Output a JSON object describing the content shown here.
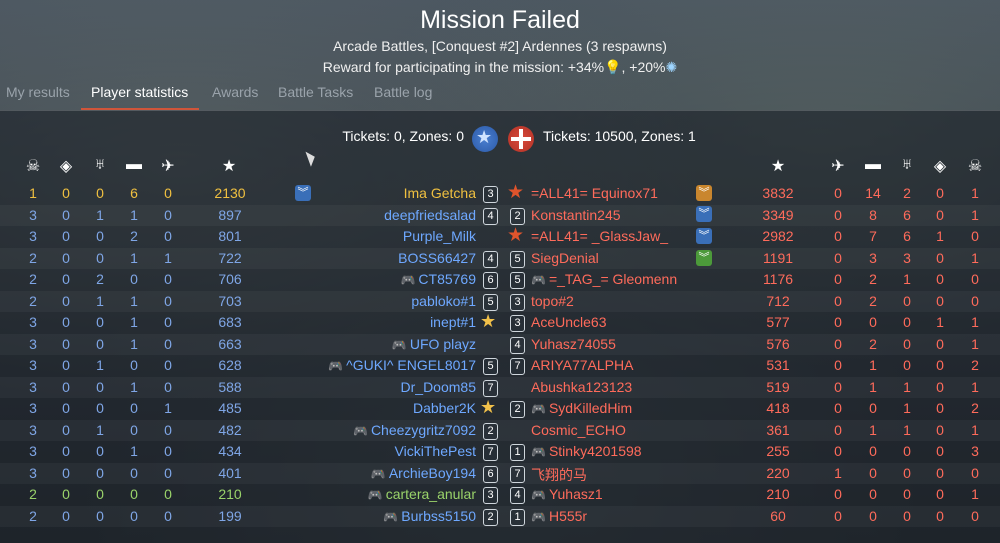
{
  "header": {
    "title": "Mission Failed",
    "subtitle": "Arcade Battles, [Conquest #2] Ardennes (3 respawns)",
    "reward_prefix": "Reward for participating in the mission:",
    "reward_rp": "+34%",
    "reward_sl": "+20%"
  },
  "tabs": [
    {
      "label": "My results"
    },
    {
      "label": "Player statistics"
    },
    {
      "label": "Awards"
    },
    {
      "label": "Battle Tasks"
    },
    {
      "label": "Battle log"
    }
  ],
  "tickets": {
    "left": "Tickets: 0, Zones: 0",
    "right": "Tickets: 10500, Zones: 1"
  },
  "colors": {
    "ally": "#6ea8ff",
    "enemy": "#ff6b5b",
    "self": "#f0c040",
    "squad": "#9ad36a"
  },
  "column_icons": [
    "skull-icon",
    "capture-icon",
    "assist-icon",
    "tank-icon",
    "plane-icon",
    "score-icon"
  ],
  "left_team": [
    {
      "deaths": "1",
      "caps": "0",
      "assists": "0",
      "ground": "6",
      "air": "0",
      "score": "2130",
      "name": "Ima Getcha",
      "rank": "3",
      "color": "self",
      "gp": false
    },
    {
      "deaths": "3",
      "caps": "0",
      "assists": "1",
      "ground": "1",
      "air": "0",
      "score": "897",
      "name": "deepfriedsalad",
      "rank": "4",
      "color": "ally",
      "gp": false
    },
    {
      "deaths": "3",
      "caps": "0",
      "assists": "0",
      "ground": "2",
      "air": "0",
      "score": "801",
      "name": "Purple_Milk",
      "rank": "",
      "color": "ally",
      "gp": false
    },
    {
      "deaths": "2",
      "caps": "0",
      "assists": "0",
      "ground": "1",
      "air": "1",
      "score": "722",
      "name": "BOSS66427",
      "rank": "4",
      "color": "ally",
      "gp": false
    },
    {
      "deaths": "2",
      "caps": "0",
      "assists": "2",
      "ground": "0",
      "air": "0",
      "score": "706",
      "name": "CT85769",
      "rank": "6",
      "color": "ally",
      "gp": true
    },
    {
      "deaths": "2",
      "caps": "0",
      "assists": "1",
      "ground": "1",
      "air": "0",
      "score": "703",
      "name": "pabloko#1",
      "rank": "5",
      "color": "ally",
      "gp": false
    },
    {
      "deaths": "3",
      "caps": "0",
      "assists": "0",
      "ground": "1",
      "air": "0",
      "score": "683",
      "name": "inept#1",
      "rank": "",
      "color": "ally",
      "gp": false
    },
    {
      "deaths": "3",
      "caps": "0",
      "assists": "0",
      "ground": "1",
      "air": "0",
      "score": "663",
      "name": "UFO playz",
      "rank": "",
      "color": "ally",
      "gp": true
    },
    {
      "deaths": "3",
      "caps": "0",
      "assists": "1",
      "ground": "0",
      "air": "0",
      "score": "628",
      "name": "^GUKI^ ENGEL8017",
      "rank": "5",
      "color": "ally",
      "gp": true
    },
    {
      "deaths": "3",
      "caps": "0",
      "assists": "0",
      "ground": "1",
      "air": "0",
      "score": "588",
      "name": "Dr_Doom85",
      "rank": "7",
      "color": "ally",
      "gp": false
    },
    {
      "deaths": "3",
      "caps": "0",
      "assists": "0",
      "ground": "0",
      "air": "1",
      "score": "485",
      "name": "Dabber2K",
      "rank": "",
      "color": "ally",
      "gp": false
    },
    {
      "deaths": "3",
      "caps": "0",
      "assists": "1",
      "ground": "0",
      "air": "0",
      "score": "482",
      "name": "Cheezygritz7092",
      "rank": "2",
      "color": "ally",
      "gp": true
    },
    {
      "deaths": "3",
      "caps": "0",
      "assists": "0",
      "ground": "1",
      "air": "0",
      "score": "434",
      "name": "VickiThePest",
      "rank": "7",
      "color": "ally",
      "gp": false
    },
    {
      "deaths": "3",
      "caps": "0",
      "assists": "0",
      "ground": "0",
      "air": "0",
      "score": "401",
      "name": "ArchieBoy194",
      "rank": "6",
      "color": "ally",
      "gp": true
    },
    {
      "deaths": "2",
      "caps": "0",
      "assists": "0",
      "ground": "0",
      "air": "0",
      "score": "210",
      "name": "cartera_anular",
      "rank": "3",
      "color": "squad",
      "gp": true
    },
    {
      "deaths": "2",
      "caps": "0",
      "assists": "0",
      "ground": "0",
      "air": "0",
      "score": "199",
      "name": "Burbss5150",
      "rank": "2",
      "color": "ally",
      "gp": true
    }
  ],
  "right_team": [
    {
      "rank": "",
      "name": "=ALL41= Equinox71",
      "score": "3832",
      "air": "0",
      "ground": "14",
      "assists": "2",
      "caps": "0",
      "deaths": "1",
      "gp": false
    },
    {
      "rank": "2",
      "name": "Konstantin245",
      "score": "3349",
      "air": "0",
      "ground": "8",
      "assists": "6",
      "caps": "0",
      "deaths": "1",
      "gp": false
    },
    {
      "rank": "",
      "name": "=ALL41= _GlassJaw_",
      "score": "2982",
      "air": "0",
      "ground": "7",
      "assists": "6",
      "caps": "1",
      "deaths": "0",
      "gp": false
    },
    {
      "rank": "5",
      "name": "SiegDenial",
      "score": "1191",
      "air": "0",
      "ground": "3",
      "assists": "3",
      "caps": "0",
      "deaths": "1",
      "gp": false
    },
    {
      "rank": "5",
      "name": "=_TAG_= Gleomenn",
      "score": "1176",
      "air": "0",
      "ground": "2",
      "assists": "1",
      "caps": "0",
      "deaths": "0",
      "gp": true
    },
    {
      "rank": "3",
      "name": "topo#2",
      "score": "712",
      "air": "0",
      "ground": "2",
      "assists": "0",
      "caps": "0",
      "deaths": "0",
      "gp": false
    },
    {
      "rank": "3",
      "name": "AceUncle63",
      "score": "577",
      "air": "0",
      "ground": "0",
      "assists": "0",
      "caps": "1",
      "deaths": "1",
      "gp": false
    },
    {
      "rank": "4",
      "name": "Yuhasz74055",
      "score": "576",
      "air": "0",
      "ground": "2",
      "assists": "0",
      "caps": "0",
      "deaths": "1",
      "gp": false
    },
    {
      "rank": "7",
      "name": "ARIYA77ALPHA",
      "score": "531",
      "air": "0",
      "ground": "1",
      "assists": "0",
      "caps": "0",
      "deaths": "2",
      "gp": false
    },
    {
      "rank": "",
      "name": "Abushka123123",
      "score": "519",
      "air": "0",
      "ground": "1",
      "assists": "1",
      "caps": "0",
      "deaths": "1",
      "gp": false
    },
    {
      "rank": "2",
      "name": "SydKilledHim",
      "score": "418",
      "air": "0",
      "ground": "0",
      "assists": "1",
      "caps": "0",
      "deaths": "2",
      "gp": true
    },
    {
      "rank": "",
      "name": "Cosmic_ECHO",
      "score": "361",
      "air": "0",
      "ground": "1",
      "assists": "1",
      "caps": "0",
      "deaths": "1",
      "gp": false
    },
    {
      "rank": "1",
      "name": "Stinky4201598",
      "score": "255",
      "air": "0",
      "ground": "0",
      "assists": "0",
      "caps": "0",
      "deaths": "3",
      "gp": true
    },
    {
      "rank": "7",
      "name": "飞翔的马",
      "score": "220",
      "air": "1",
      "ground": "0",
      "assists": "0",
      "caps": "0",
      "deaths": "0",
      "gp": false
    },
    {
      "rank": "4",
      "name": "Yuhasz1",
      "score": "210",
      "air": "0",
      "ground": "0",
      "assists": "0",
      "caps": "0",
      "deaths": "1",
      "gp": true
    },
    {
      "rank": "1",
      "name": "H555r",
      "score": "60",
      "air": "0",
      "ground": "0",
      "assists": "0",
      "caps": "0",
      "deaths": "0",
      "gp": true
    }
  ]
}
